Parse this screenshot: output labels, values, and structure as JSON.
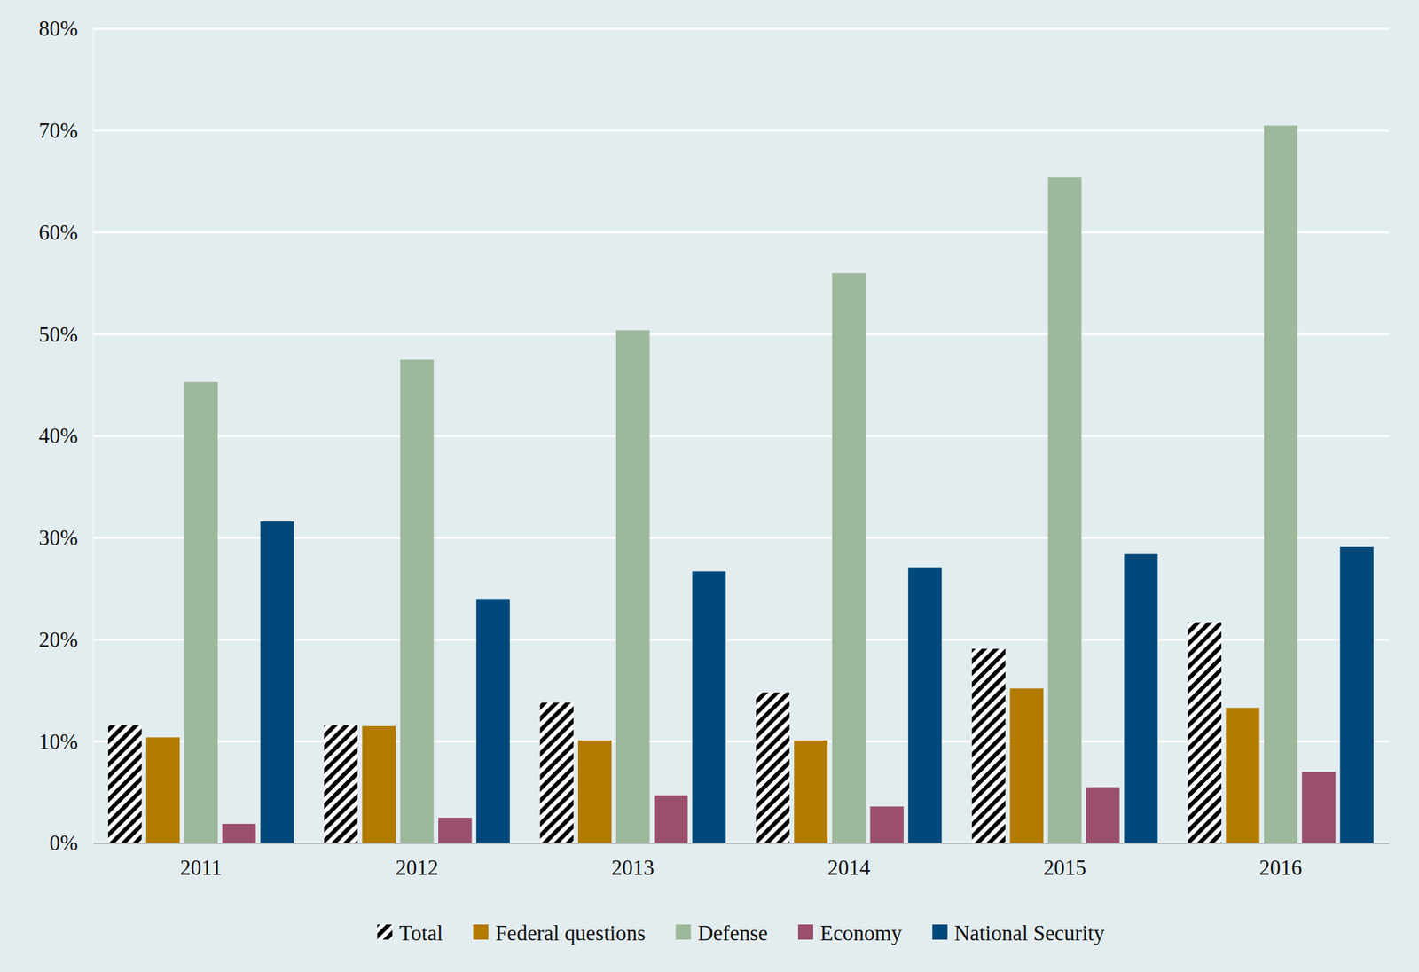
{
  "chart_data": {
    "type": "bar",
    "categories": [
      "2011",
      "2012",
      "2013",
      "2014",
      "2015",
      "2016"
    ],
    "series": [
      {
        "name": "Total",
        "color": "#000000",
        "marker": "hatch",
        "values": [
          11.6,
          11.6,
          13.8,
          14.8,
          19.1,
          21.7
        ]
      },
      {
        "name": "Federal questions",
        "color": "#b37a00",
        "values": [
          10.4,
          11.5,
          10.1,
          10.1,
          15.2,
          13.3
        ]
      },
      {
        "name": "Defense",
        "color": "#9db89b",
        "values": [
          45.3,
          47.5,
          50.4,
          56.0,
          65.4,
          70.5
        ]
      },
      {
        "name": "Economy",
        "color": "#9b4f6e",
        "values": [
          1.9,
          2.5,
          4.7,
          3.6,
          5.5,
          7.0
        ]
      },
      {
        "name": "National Security",
        "color": "#00497a",
        "values": [
          31.6,
          24.0,
          26.7,
          27.1,
          28.4,
          29.1
        ]
      }
    ],
    "ylim": [
      0,
      80
    ],
    "yticks": [
      {
        "value": 0,
        "label": "0%"
      },
      {
        "value": 10,
        "label": "10%"
      },
      {
        "value": 20,
        "label": "20%"
      },
      {
        "value": 30,
        "label": "30%"
      },
      {
        "value": 40,
        "label": "40%"
      },
      {
        "value": 50,
        "label": "50%"
      },
      {
        "value": 60,
        "label": "60%"
      },
      {
        "value": 70,
        "label": "70%"
      },
      {
        "value": 80,
        "label": "80%"
      }
    ],
    "grid": true,
    "legend": "bottom"
  }
}
